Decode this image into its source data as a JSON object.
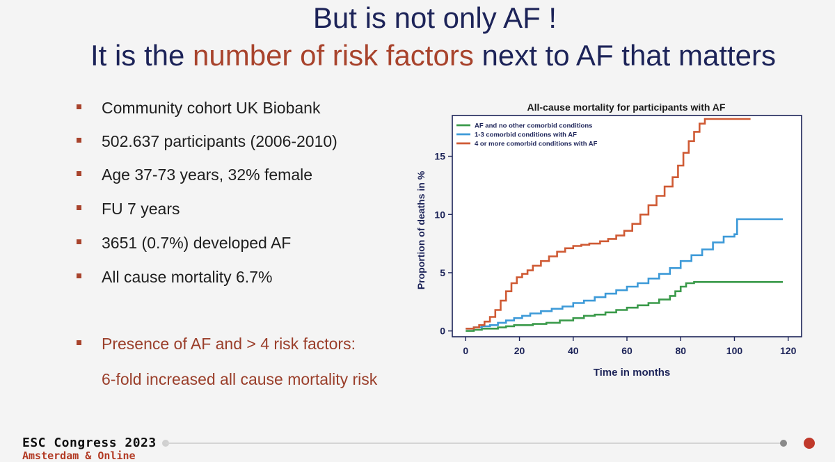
{
  "slide": {
    "title_line1": "But is not only AF !",
    "title_line2_pre": "It is the ",
    "title_line2_highlight": "number of risk factors",
    "title_line2_post": " next to AF that matters",
    "bullets": [
      "Community cohort UK Biobank",
      "502.637 participants (2006-2010)",
      "Age 37-73 years, 32% female",
      "FU 7 years",
      "3651 (0.7%) developed AF",
      "All cause mortality 6.7%"
    ],
    "highlight_bullet": "Presence of AF and > 4 risk factors:",
    "highlight_bullet_cont": "6-fold increased all cause mortality risk",
    "accent_color": "#a8432c",
    "title_color": "#1c2358"
  },
  "footer": {
    "congress": "ESC Congress 2023",
    "location": "Amsterdam & Online"
  },
  "chart_data": {
    "type": "line",
    "title": "All-cause mortality for participants with AF",
    "xlabel": "Time in months",
    "ylabel": "Proportion of deaths in %",
    "xlim": [
      -5,
      125
    ],
    "ylim": [
      -0.5,
      18.5
    ],
    "xticks": [
      0,
      20,
      40,
      60,
      80,
      100,
      120
    ],
    "yticks": [
      0,
      5,
      10,
      15
    ],
    "legend_position": "top-left",
    "series": [
      {
        "name": "AF and no other comorbid conditions",
        "color": "#3a9a4a",
        "x": [
          0,
          3,
          6,
          9,
          12,
          15,
          18,
          20,
          25,
          30,
          35,
          40,
          44,
          48,
          52,
          56,
          60,
          64,
          68,
          72,
          76,
          78,
          80,
          82,
          85,
          90,
          100,
          110,
          118
        ],
        "y": [
          0,
          0.1,
          0.2,
          0.2,
          0.3,
          0.4,
          0.5,
          0.5,
          0.6,
          0.7,
          0.9,
          1.1,
          1.3,
          1.4,
          1.6,
          1.8,
          2.0,
          2.2,
          2.4,
          2.7,
          3.0,
          3.4,
          3.8,
          4.1,
          4.2,
          4.2,
          4.2,
          4.2,
          4.2
        ]
      },
      {
        "name": "1-3 comorbid conditions with AF",
        "color": "#3d9ad8",
        "x": [
          0,
          3,
          6,
          9,
          12,
          15,
          18,
          21,
          24,
          28,
          32,
          36,
          40,
          44,
          48,
          52,
          56,
          60,
          64,
          68,
          72,
          76,
          80,
          84,
          88,
          92,
          96,
          100,
          101,
          105,
          110,
          118
        ],
        "y": [
          0.2,
          0.3,
          0.4,
          0.5,
          0.7,
          0.9,
          1.1,
          1.3,
          1.5,
          1.7,
          1.9,
          2.1,
          2.4,
          2.6,
          2.9,
          3.2,
          3.5,
          3.8,
          4.1,
          4.5,
          4.9,
          5.4,
          6.0,
          6.5,
          7.0,
          7.6,
          8.1,
          8.3,
          9.6,
          9.6,
          9.6,
          9.6
        ]
      },
      {
        "name": "4 or more comorbid conditions with AF",
        "color": "#cf5a34",
        "x": [
          0,
          3,
          5,
          7,
          9,
          11,
          13,
          15,
          17,
          19,
          21,
          23,
          25,
          28,
          31,
          34,
          37,
          40,
          43,
          46,
          50,
          53,
          56,
          59,
          62,
          65,
          68,
          71,
          74,
          77,
          79,
          81,
          83,
          85,
          87,
          89,
          95,
          100,
          106
        ],
        "y": [
          0.2,
          0.3,
          0.5,
          0.8,
          1.2,
          1.8,
          2.6,
          3.4,
          4.1,
          4.6,
          4.9,
          5.2,
          5.6,
          6.0,
          6.4,
          6.8,
          7.1,
          7.3,
          7.4,
          7.5,
          7.7,
          7.9,
          8.2,
          8.6,
          9.2,
          10.0,
          10.8,
          11.6,
          12.4,
          13.2,
          14.2,
          15.3,
          16.3,
          17.1,
          17.8,
          18.2,
          18.2,
          18.2,
          18.2
        ]
      }
    ]
  }
}
